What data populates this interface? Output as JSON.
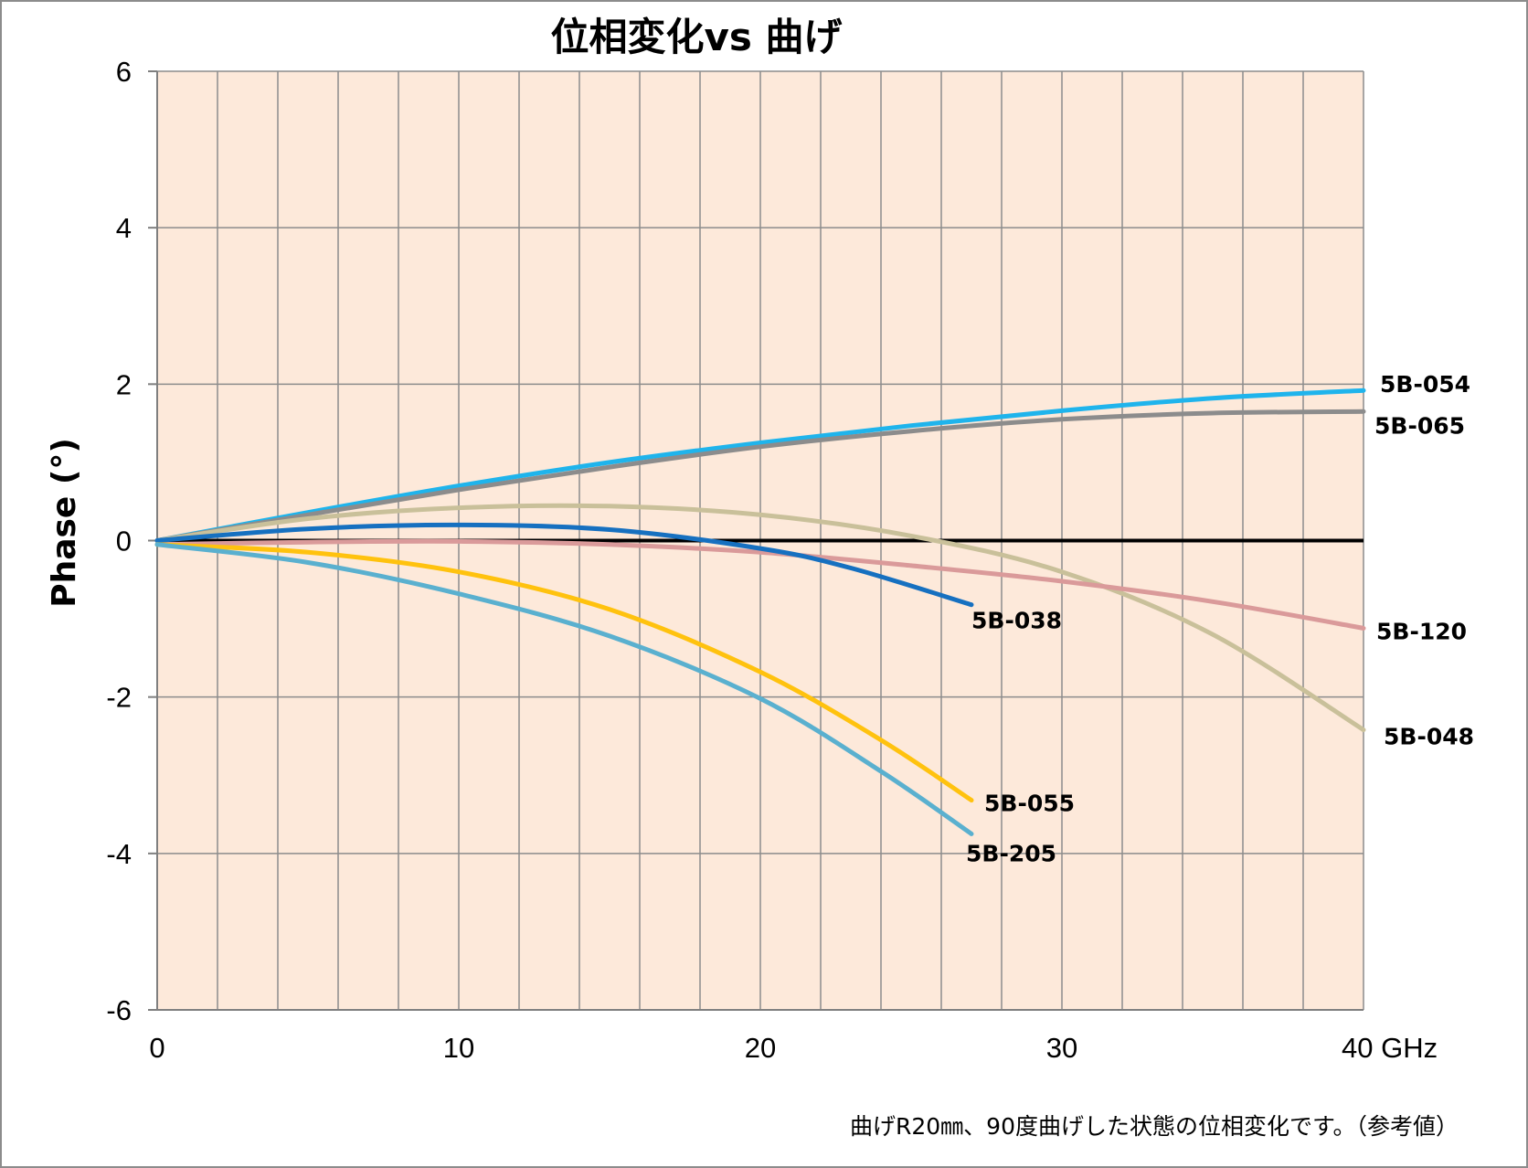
{
  "chart_data": {
    "type": "line",
    "title": "位相変化vs 曲げ",
    "xlabel": "",
    "xunit": "GHz",
    "ylabel": "Phase (°)",
    "xlim": [
      0,
      40
    ],
    "ylim": [
      -6,
      6
    ],
    "xticks": [
      0,
      10,
      20,
      30,
      40
    ],
    "xtick_labels": [
      "0",
      "10",
      "20",
      "30",
      "40 GHz"
    ],
    "yticks": [
      -6,
      -4,
      -2,
      0,
      2,
      4,
      6
    ],
    "ytick_labels": [
      "-6",
      "-4",
      "-2",
      "0",
      "2",
      "4",
      "6"
    ],
    "x_gridlines_every": 2,
    "grid": true,
    "legend": "none (series labeled at line ends)",
    "plot_background": "#fde9da",
    "reference_line": {
      "y": 0,
      "color": "#000000"
    },
    "note": "曲げR20㎜、90度曲げした状態の位相変化です。（参考値）",
    "series": [
      {
        "name": "5B-054",
        "color": "#1fb4ec",
        "x": [
          0,
          5,
          10,
          15,
          20,
          25,
          30,
          35,
          40
        ],
        "y": [
          0,
          0.36,
          0.7,
          1.0,
          1.25,
          1.47,
          1.66,
          1.82,
          1.92
        ]
      },
      {
        "name": "5B-065",
        "color": "#8c8c8c",
        "x": [
          0,
          5,
          10,
          15,
          20,
          25,
          30,
          35,
          40
        ],
        "y": [
          0,
          0.33,
          0.65,
          0.94,
          1.2,
          1.4,
          1.55,
          1.63,
          1.65
        ]
      },
      {
        "name": "5B-048",
        "color": "#c9c09a",
        "x": [
          0,
          5,
          10,
          15,
          20,
          25,
          30,
          35,
          40
        ],
        "y": [
          0,
          0.28,
          0.42,
          0.44,
          0.33,
          0.06,
          -0.4,
          -1.2,
          -2.42
        ]
      },
      {
        "name": "5B-120",
        "color": "#da9a9a",
        "x": [
          0,
          5,
          10,
          15,
          20,
          25,
          30,
          35,
          40
        ],
        "y": [
          -0.05,
          -0.02,
          -0.01,
          -0.05,
          -0.15,
          -0.32,
          -0.52,
          -0.78,
          -1.12
        ]
      },
      {
        "name": "5B-038",
        "color": "#1670c0",
        "x": [
          0,
          5,
          10,
          15,
          20,
          23,
          27
        ],
        "y": [
          0,
          0.15,
          0.2,
          0.14,
          -0.1,
          -0.35,
          -0.82
        ]
      },
      {
        "name": "5B-055",
        "color": "#ffc20e",
        "x": [
          0,
          5,
          10,
          15,
          20,
          24,
          27
        ],
        "y": [
          -0.05,
          -0.15,
          -0.4,
          -0.88,
          -1.68,
          -2.55,
          -3.32
        ]
      },
      {
        "name": "5B-205",
        "color": "#5ab0cf",
        "x": [
          0,
          5,
          10,
          15,
          20,
          24,
          27
        ],
        "y": [
          -0.05,
          -0.28,
          -0.68,
          -1.22,
          -2.02,
          -2.95,
          -3.75
        ]
      }
    ]
  }
}
